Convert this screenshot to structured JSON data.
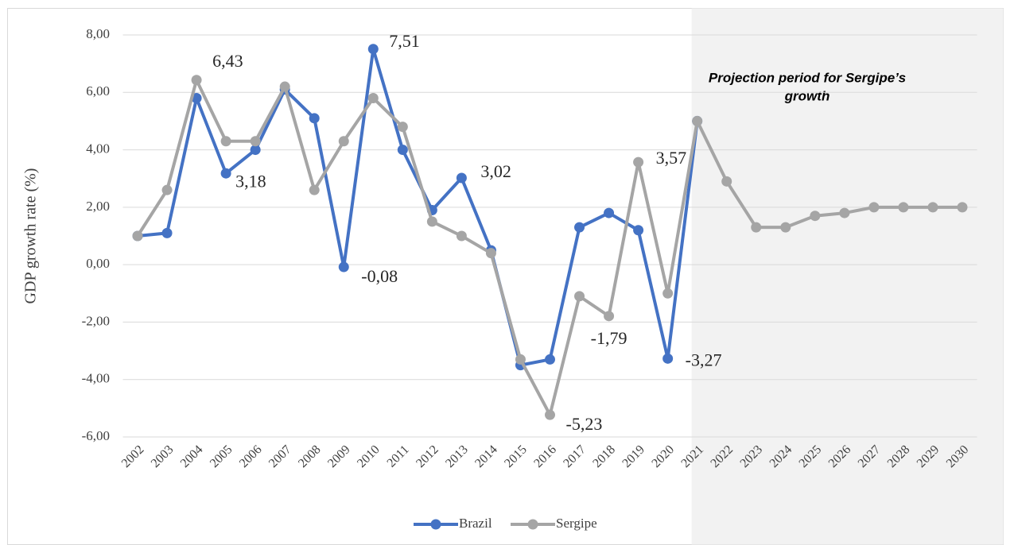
{
  "chart_data": {
    "type": "line",
    "y_label": "GDP growth rate (%)",
    "annotation": [
      "Projection period for Sergipe’s",
      "growth"
    ],
    "categories": [
      "2002",
      "2003",
      "2004",
      "2005",
      "2006",
      "2007",
      "2008",
      "2009",
      "2010",
      "2011",
      "2012",
      "2013",
      "2014",
      "2015",
      "2016",
      "2017",
      "2018",
      "2019",
      "2020",
      "2021",
      "2022",
      "2023",
      "2024",
      "2025",
      "2026",
      "2027",
      "2028",
      "2029",
      "2030"
    ],
    "series": [
      {
        "name": "Brazil",
        "color": "#4472c4",
        "values": [
          1.0,
          1.1,
          5.8,
          3.18,
          4.0,
          6.1,
          5.1,
          -0.08,
          7.51,
          4.0,
          1.9,
          3.02,
          0.5,
          -3.5,
          -3.3,
          1.3,
          1.8,
          1.2,
          -3.27,
          5.0,
          null,
          null,
          null,
          null,
          null,
          null,
          null,
          null,
          null
        ],
        "value_labels": [
          null,
          null,
          null,
          "3,18",
          null,
          null,
          null,
          "-0,08",
          "7,51",
          null,
          null,
          "3,02",
          null,
          null,
          null,
          null,
          null,
          null,
          "-3,27",
          null,
          null,
          null,
          null,
          null,
          null,
          null,
          null,
          null,
          null
        ]
      },
      {
        "name": "Sergipe",
        "color": "#a5a5a5",
        "values": [
          1.0,
          2.6,
          6.43,
          4.3,
          4.3,
          6.2,
          2.6,
          4.3,
          5.8,
          4.8,
          1.5,
          1.0,
          0.4,
          -3.3,
          -5.23,
          -1.1,
          -1.79,
          3.57,
          -1.0,
          5.0,
          2.9,
          1.3,
          1.3,
          1.7,
          1.8,
          2.0,
          2.0,
          2.0,
          2.0
        ],
        "value_labels": [
          null,
          null,
          "6,43",
          null,
          null,
          null,
          null,
          null,
          null,
          null,
          null,
          null,
          null,
          null,
          "-5,23",
          null,
          "-1,79",
          "3,57",
          null,
          null,
          null,
          null,
          null,
          null,
          null,
          null,
          null,
          null,
          null
        ]
      }
    ],
    "ylim": [
      -6,
      8
    ],
    "yticks": [
      {
        "value": -6,
        "label": "-6,00"
      },
      {
        "value": -4,
        "label": "-4,00"
      },
      {
        "value": -2,
        "label": "-2,00"
      },
      {
        "value": 0,
        "label": "0,00"
      },
      {
        "value": 2,
        "label": "2,00"
      },
      {
        "value": 4,
        "label": "4,00"
      },
      {
        "value": 6,
        "label": "6,00"
      },
      {
        "value": 8,
        "label": "8,00"
      }
    ],
    "grid": true,
    "legend": "bottom"
  }
}
